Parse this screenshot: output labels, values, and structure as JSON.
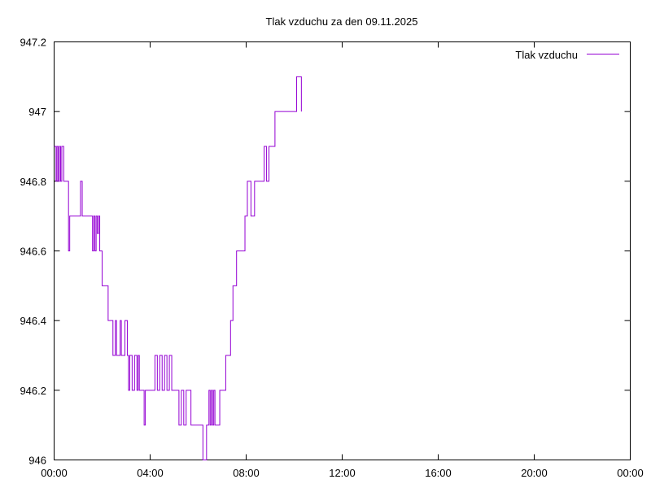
{
  "chart_data": {
    "type": "line",
    "title": "Tlak vzduchu za den 09.11.2025",
    "xlabel": "",
    "ylabel": "",
    "xlim": [
      0,
      24
    ],
    "ylim": [
      946.0,
      947.2
    ],
    "x_ticks": [
      0,
      4,
      8,
      12,
      16,
      20,
      24
    ],
    "x_tick_labels": [
      "00:00",
      "04:00",
      "08:00",
      "12:00",
      "16:00",
      "20:00",
      "00:00"
    ],
    "y_ticks": [
      946.0,
      946.2,
      946.4,
      946.6,
      946.8,
      947.0,
      947.2
    ],
    "y_tick_labels": [
      "946",
      "946.2",
      "946.4",
      "946.6",
      "946.8",
      "947",
      "947.2"
    ],
    "grid": false,
    "legend_position": "top-right",
    "series": [
      {
        "name": "Tlak vzduchu",
        "color": "#9400d3",
        "step": true,
        "x": [
          0.0,
          0.08,
          0.12,
          0.17,
          0.22,
          0.27,
          0.32,
          0.4,
          0.52,
          0.6,
          0.65,
          0.7,
          1.0,
          1.1,
          1.17,
          1.22,
          1.3,
          1.5,
          1.6,
          1.65,
          1.7,
          1.75,
          1.8,
          1.85,
          1.9,
          2.0,
          2.15,
          2.25,
          2.35,
          2.45,
          2.55,
          2.6,
          2.65,
          2.75,
          2.8,
          2.85,
          2.95,
          3.05,
          3.1,
          3.15,
          3.25,
          3.35,
          3.45,
          3.5,
          3.55,
          3.65,
          3.75,
          3.8,
          3.85,
          3.9,
          4.05,
          4.2,
          4.3,
          4.4,
          4.5,
          4.6,
          4.7,
          4.8,
          4.9,
          5.05,
          5.2,
          5.3,
          5.4,
          5.5,
          5.6,
          5.7,
          5.8,
          5.9,
          6.0,
          6.1,
          6.2,
          6.35,
          6.45,
          6.5,
          6.55,
          6.6,
          6.65,
          6.7,
          6.8,
          6.9,
          7.05,
          7.15,
          7.25,
          7.35,
          7.45,
          7.6,
          7.75,
          7.95,
          8.05,
          8.2,
          8.35,
          8.5,
          8.75,
          8.85,
          8.95,
          9.05,
          9.2,
          9.35,
          9.5,
          9.6,
          9.8,
          10.05,
          10.1,
          10.2,
          10.3
        ],
        "y": [
          946.9,
          946.8,
          946.9,
          946.8,
          946.9,
          946.8,
          946.9,
          946.8,
          946.8,
          946.6,
          946.7,
          946.7,
          946.7,
          946.8,
          946.7,
          946.7,
          946.7,
          946.7,
          946.6,
          946.7,
          946.6,
          946.7,
          946.65,
          946.7,
          946.6,
          946.5,
          946.5,
          946.4,
          946.4,
          946.3,
          946.4,
          946.3,
          946.3,
          946.4,
          946.3,
          946.3,
          946.4,
          946.3,
          946.2,
          946.3,
          946.2,
          946.3,
          946.2,
          946.3,
          946.2,
          946.2,
          946.1,
          946.2,
          946.2,
          946.2,
          946.2,
          946.3,
          946.2,
          946.3,
          946.2,
          946.3,
          946.2,
          946.3,
          946.2,
          946.2,
          946.1,
          946.2,
          946.1,
          946.2,
          946.2,
          946.1,
          946.1,
          946.1,
          946.1,
          946.1,
          946.0,
          946.1,
          946.2,
          946.1,
          946.2,
          946.1,
          946.2,
          946.1,
          946.1,
          946.2,
          946.2,
          946.3,
          946.3,
          946.4,
          946.5,
          946.6,
          946.6,
          946.7,
          946.8,
          946.7,
          946.8,
          946.8,
          946.9,
          946.8,
          946.9,
          946.9,
          947.0,
          947.0,
          947.0,
          947.0,
          947.0,
          947.0,
          947.1,
          947.1,
          947.0
        ]
      }
    ]
  }
}
